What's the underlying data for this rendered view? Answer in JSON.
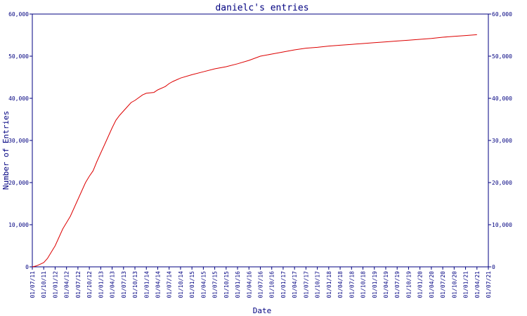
{
  "chart_data": {
    "type": "line",
    "title": "danielc's entries",
    "xlabel": "Date",
    "ylabel": "Number of Entries",
    "ylim": [
      0,
      60000
    ],
    "y_ticks": [
      0,
      10000,
      20000,
      30000,
      40000,
      50000,
      60000
    ],
    "y_tick_labels": [
      "0",
      "10,000",
      "20,000",
      "30,000",
      "40,000",
      "50,000",
      "60,000"
    ],
    "x_tick_labels": [
      "01/07/11",
      "01/10/11",
      "01/01/12",
      "01/04/12",
      "01/07/12",
      "01/10/12",
      "01/01/13",
      "01/04/13",
      "01/07/13",
      "01/10/13",
      "01/01/14",
      "01/04/14",
      "01/07/14",
      "01/10/14",
      "01/01/15",
      "01/04/15",
      "01/07/15",
      "01/10/15",
      "01/01/16",
      "01/04/16",
      "01/07/16",
      "01/10/16",
      "01/01/17",
      "01/04/17",
      "01/07/17",
      "01/10/17",
      "01/01/18",
      "01/04/18",
      "01/07/18",
      "01/10/18",
      "01/01/19",
      "01/04/19",
      "01/07/19",
      "01/10/19",
      "01/01/20",
      "01/04/20",
      "01/07/20",
      "01/10/20",
      "01/01/21",
      "01/04/21",
      "01/07/21"
    ],
    "series": [
      {
        "color": "#dd0000",
        "x": [
          "01/07/11",
          "01/08/11",
          "01/09/11",
          "01/10/11",
          "01/11/11",
          "01/12/11",
          "01/01/12",
          "01/02/12",
          "01/03/12",
          "01/04/12",
          "01/05/12",
          "01/06/12",
          "01/07/12",
          "01/08/12",
          "01/09/12",
          "01/10/12",
          "01/11/12",
          "01/12/12",
          "01/01/13",
          "01/02/13",
          "01/03/13",
          "01/04/13",
          "01/05/13",
          "01/06/13",
          "01/07/13",
          "01/08/13",
          "01/09/13",
          "01/10/13",
          "01/12/13",
          "01/01/14",
          "01/03/14",
          "01/04/14",
          "01/06/14",
          "01/07/14",
          "01/08/14",
          "01/10/14",
          "01/01/15",
          "01/04/15",
          "01/07/15",
          "01/10/15",
          "01/01/16",
          "01/04/16",
          "01/07/16",
          "01/10/16",
          "01/01/17",
          "01/04/17",
          "01/07/17",
          "01/10/17",
          "01/01/18",
          "01/04/18",
          "01/07/18",
          "01/10/18",
          "01/01/19",
          "01/04/19",
          "01/07/19",
          "01/10/19",
          "01/01/20",
          "01/04/20",
          "01/07/20",
          "01/10/20",
          "01/01/21",
          "01/04/21"
        ],
        "y": [
          0,
          200,
          600,
          1000,
          2000,
          3500,
          5000,
          7000,
          9000,
          10500,
          12000,
          14000,
          16000,
          18000,
          20000,
          21500,
          22800,
          25000,
          27000,
          29000,
          31000,
          33000,
          34800,
          36000,
          37000,
          38000,
          39000,
          39500,
          40800,
          41200,
          41400,
          42000,
          42800,
          43500,
          44000,
          44800,
          45600,
          46300,
          47000,
          47500,
          48200,
          49000,
          50000,
          50500,
          51000,
          51500,
          51900,
          52100,
          52400,
          52600,
          52800,
          53000,
          53200,
          53400,
          53600,
          53800,
          54000,
          54200,
          54500,
          54700,
          54900,
          55100
        ]
      }
    ]
  }
}
